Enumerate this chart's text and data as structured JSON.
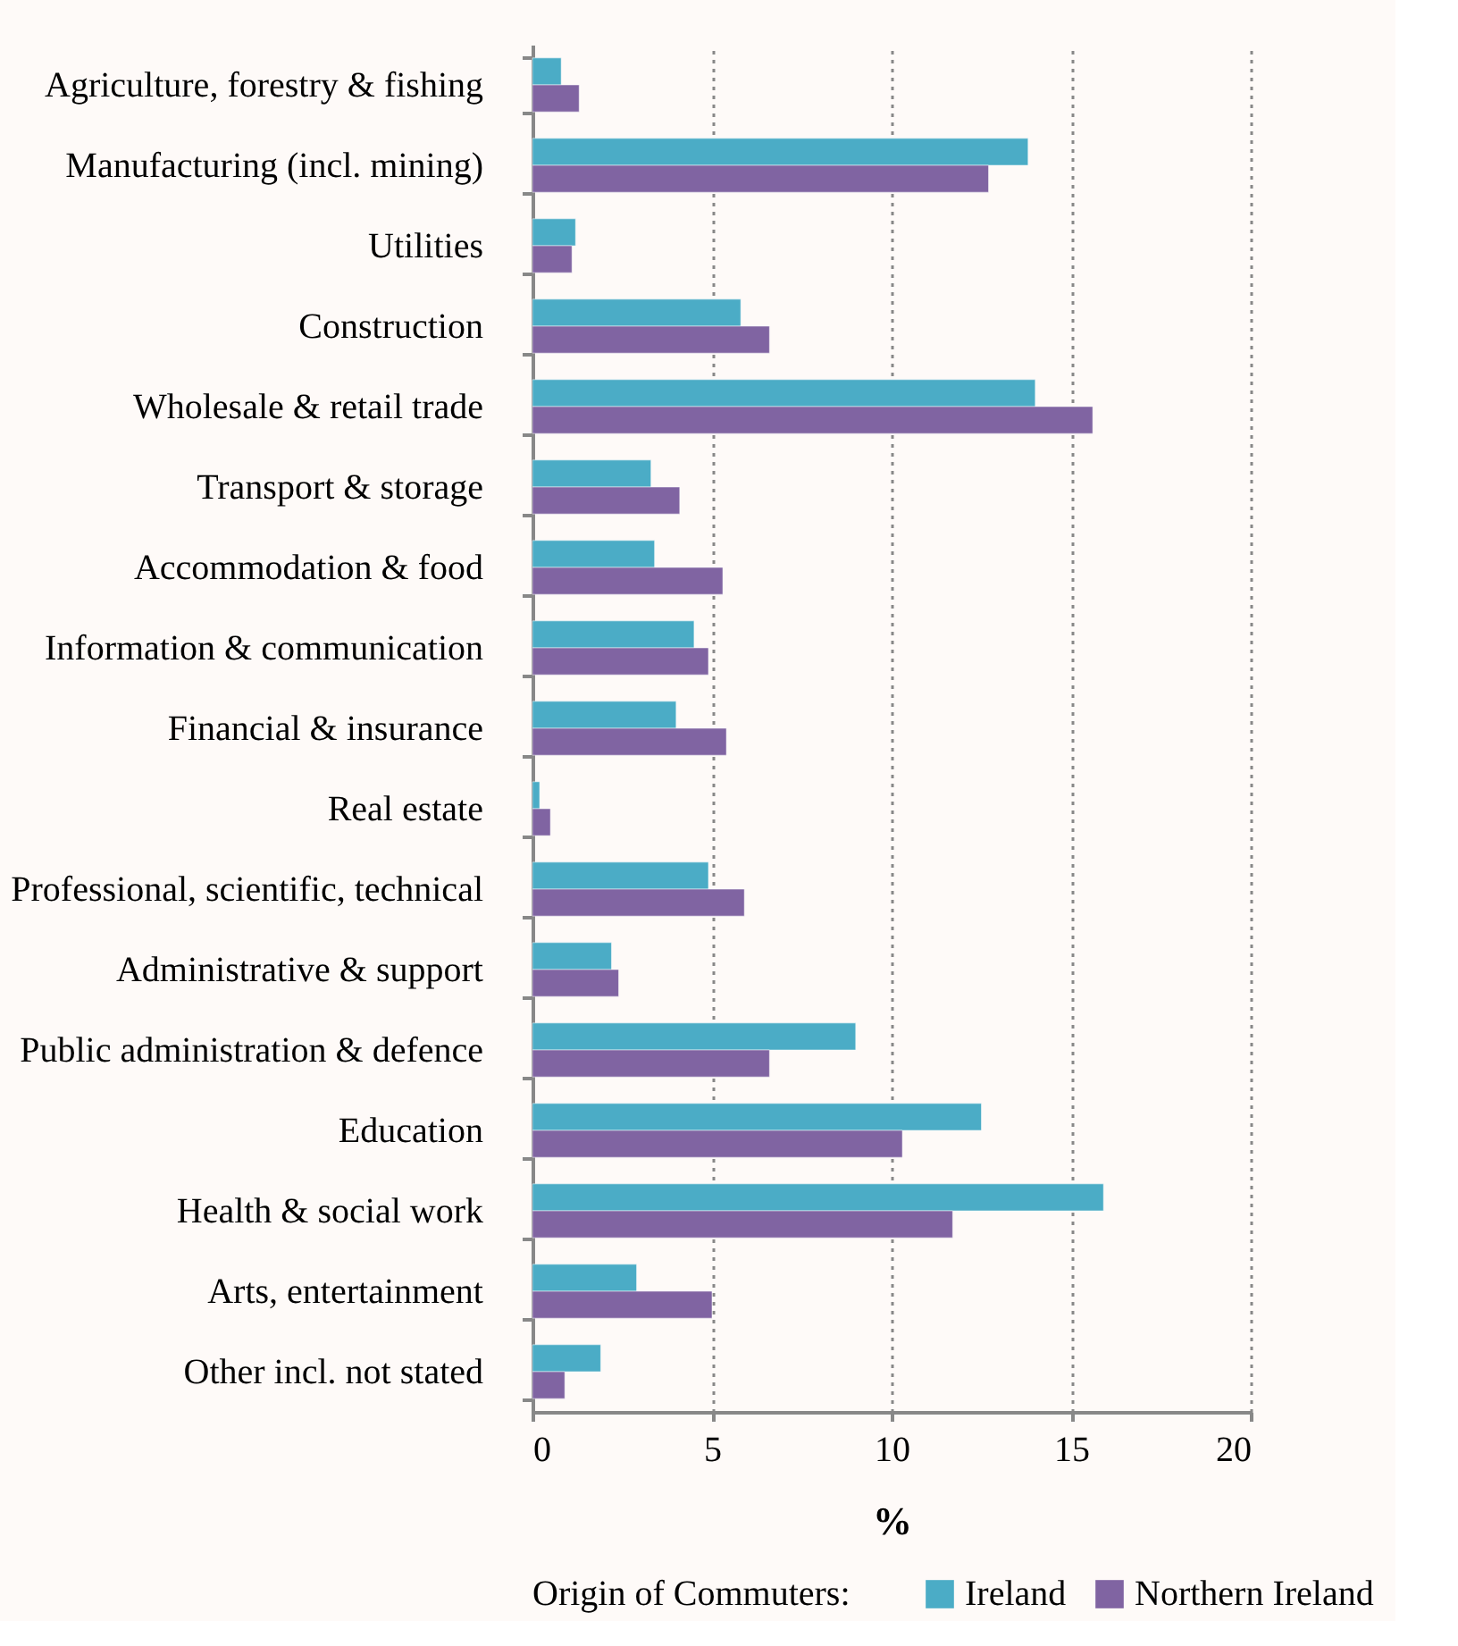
{
  "chart_data": {
    "type": "bar",
    "orientation": "horizontal",
    "xlabel": "%",
    "legend_title": "Origin of Commuters:",
    "legend": "bottom",
    "grid": "x",
    "categories": [
      "Agriculture, forestry & fishing",
      "Manufacturing (incl. mining)",
      "Utilities",
      "Construction",
      "Wholesale & retail trade",
      "Transport & storage",
      "Accommodation & food",
      "Information & communication",
      "Financial & insurance",
      "Real estate",
      "Professional, scientific, technical",
      "Administrative & support",
      "Public administration & defence",
      "Education",
      "Health & social work",
      "Arts, entertainment",
      "Other incl. not stated"
    ],
    "series": [
      {
        "name": "Ireland",
        "color": "#4bacc6",
        "values": [
          0.8,
          13.8,
          1.2,
          5.8,
          14.0,
          3.3,
          3.4,
          4.5,
          4.0,
          0.2,
          4.9,
          2.2,
          9.0,
          12.5,
          15.9,
          2.9,
          1.9
        ]
      },
      {
        "name": "Northern Ireland",
        "color": "#8064a2",
        "values": [
          1.3,
          12.7,
          1.1,
          6.6,
          15.6,
          4.1,
          5.3,
          4.9,
          5.4,
          0.5,
          5.9,
          2.4,
          6.6,
          10.3,
          11.7,
          5.0,
          0.9
        ]
      }
    ],
    "xlim": [
      0,
      20
    ],
    "xticks": [
      0,
      5,
      10,
      15,
      20
    ]
  }
}
